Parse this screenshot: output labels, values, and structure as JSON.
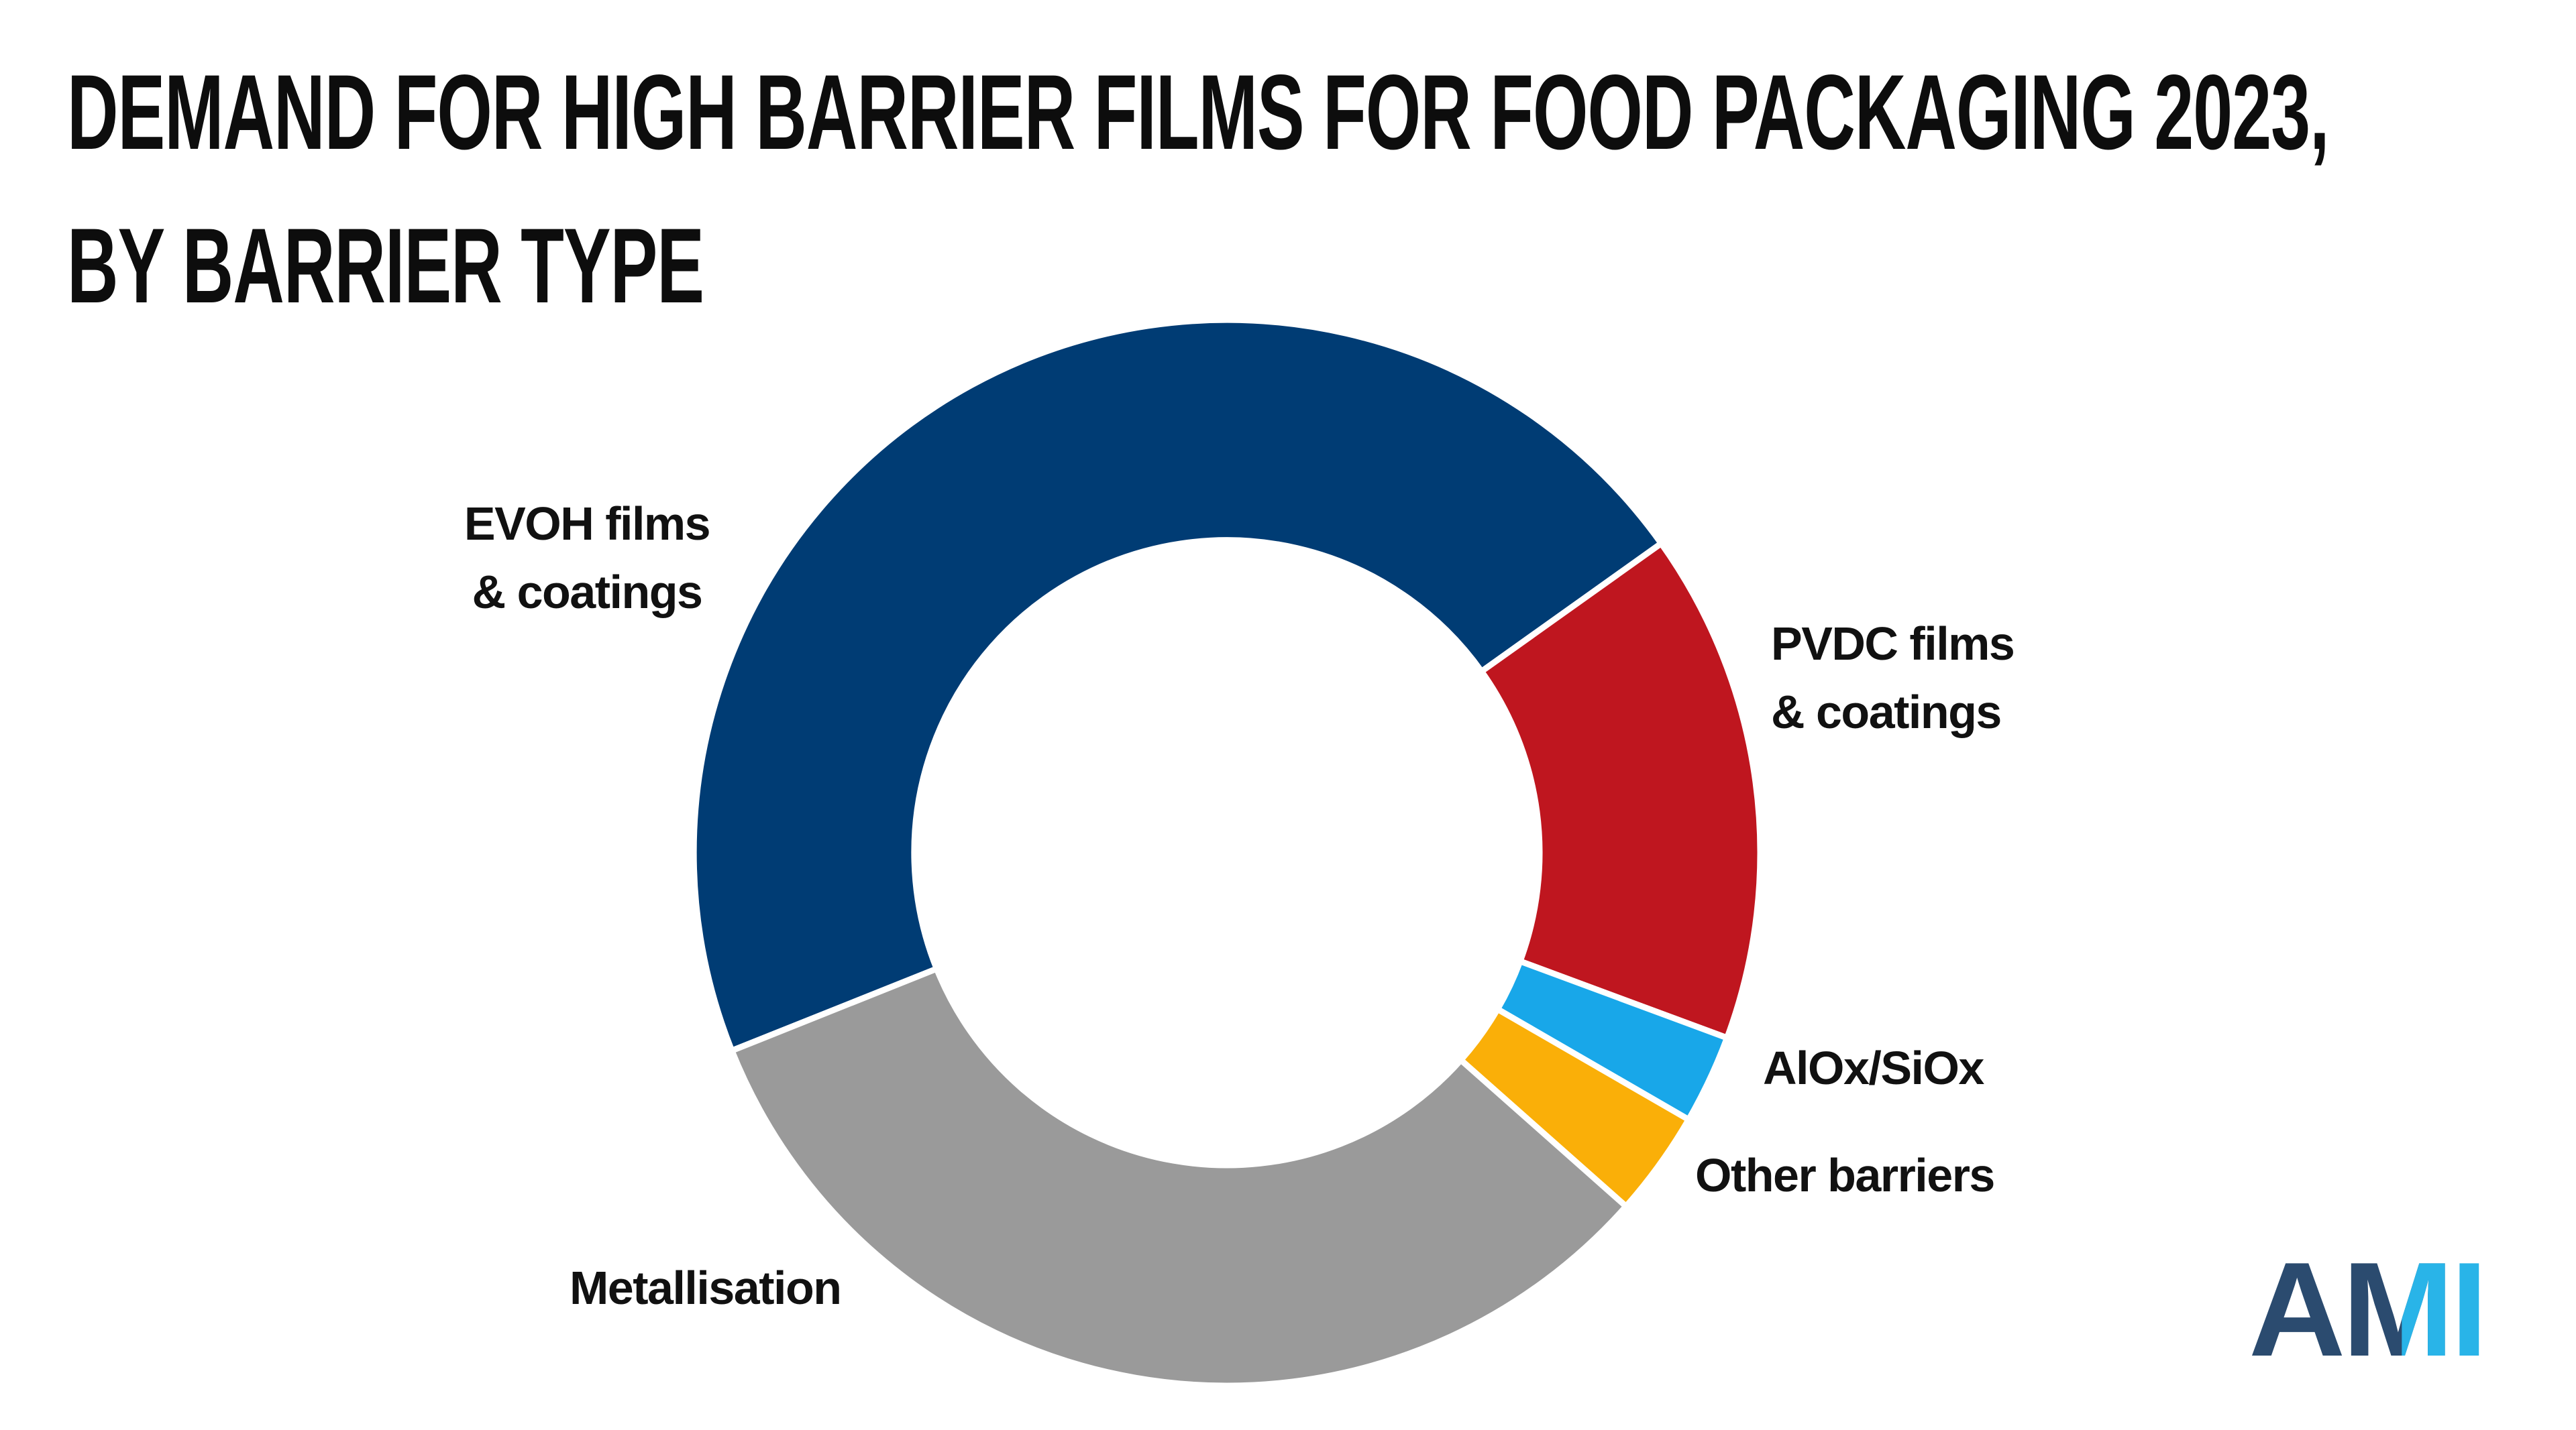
{
  "title": {
    "line1": "DEMAND FOR HIGH BARRIER FILMS FOR FOOD PACKAGING 2023,",
    "line2": "BY BARRIER TYPE"
  },
  "chart_data": {
    "type": "pie",
    "donut": true,
    "inner_radius_ratio": 0.586,
    "title": "DEMAND FOR HIGH BARRIER FILMS FOR FOOD PACKAGING 2023, BY BARRIER TYPE",
    "values_are": "percent share, estimated from arc angles (no numeric data labels shown)",
    "start_angle_deg_clockwise_from_top": 248.2,
    "legend_position": "labels around chart",
    "data_labels_visible": false,
    "segments": [
      {
        "label": "EVOH films & coatings",
        "label_lines": [
          "EVOH films",
          "& coatings"
        ],
        "value_pct": 46.2,
        "color": "#003C74"
      },
      {
        "label": "PVDC films & coatings",
        "label_lines": [
          "PVDC films",
          "& coatings"
        ],
        "value_pct": 15.5,
        "color": "#BF161F"
      },
      {
        "label": "AlOx/SiOx",
        "label_lines": [
          "AlOx/SiOx"
        ],
        "value_pct": 2.7,
        "color": "#18A7E9"
      },
      {
        "label": "Other barriers",
        "label_lines": [
          "Other barriers"
        ],
        "value_pct": 3.2,
        "color": "#FAAF08"
      },
      {
        "label": "Metallisation",
        "label_lines": [
          "Metallisation"
        ],
        "value_pct": 32.4,
        "color": "#9A9A9A"
      }
    ],
    "separator_color": "#FFFFFF"
  },
  "logo": {
    "text": "AMI",
    "letter_a": "A",
    "letter_m": "M",
    "letter_i": "I",
    "dark_color": "#2B4B6F",
    "light_color": "#29B4E8"
  },
  "colors": {
    "background": "#FFFFFF",
    "title_text": "#0D0D0D",
    "label_text": "#111111"
  }
}
